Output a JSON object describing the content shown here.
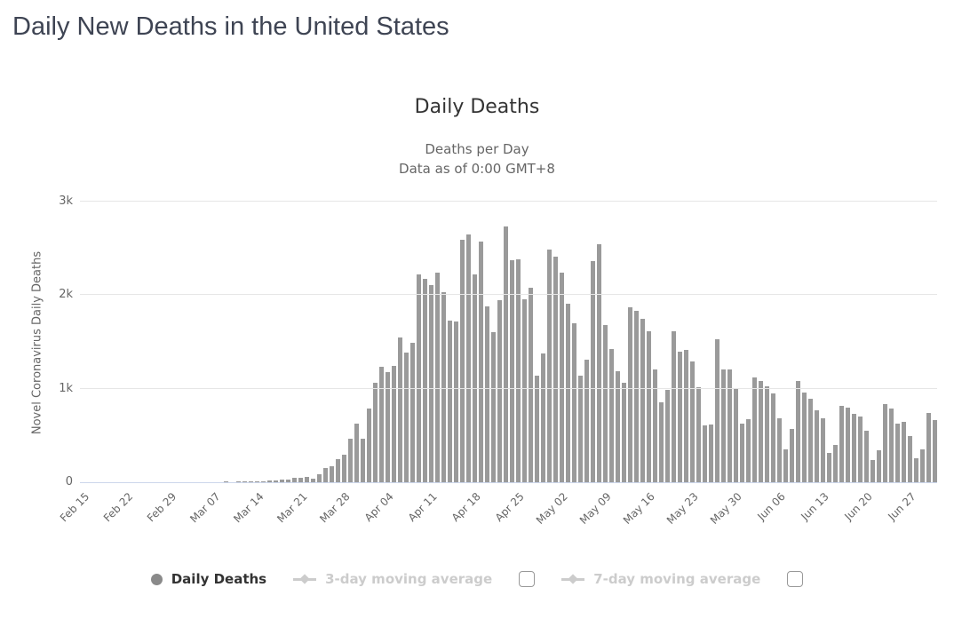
{
  "page": {
    "title": "Daily New Deaths in the United States"
  },
  "chart": {
    "title": "Daily Deaths",
    "subtitle_line1": "Deaths per Day",
    "subtitle_line2": "Data as of 0:00 GMT+8",
    "y_axis_title": "Novel Coronavirus Daily Deaths",
    "y_ticks": [
      "0",
      "1k",
      "2k",
      "3k"
    ],
    "legend": {
      "series1": "Daily Deaths",
      "series2": "3-day moving average",
      "series3": "7-day moving average"
    },
    "colors": {
      "bar": "#9a9a9a",
      "page_title": "#3e4453",
      "chart_title": "#333333",
      "subtitle": "#666666",
      "axis_text": "#666666",
      "gridline": "#e6e6e6",
      "axis_line": "#ccd6eb",
      "legend_active": "#333333",
      "legend_disabled": "#cccccc"
    }
  },
  "chart_data": {
    "type": "bar",
    "title": "Daily Deaths",
    "subtitle": "Deaths per Day — Data as of 0:00 GMT+8",
    "ylabel": "Novel Coronavirus Daily Deaths",
    "ylim": [
      0,
      3000
    ],
    "y_tick_values": [
      0,
      1000,
      2000,
      3000
    ],
    "y_tick_labels": [
      "0",
      "1k",
      "2k",
      "3k"
    ],
    "grid": "horizontal",
    "legend_position": "bottom",
    "series_name": "Daily Deaths",
    "bar_color": "#9a9a9a",
    "start_date": "Feb 15",
    "end_date": "Jul 01",
    "x_tick_labels": [
      "Feb 15",
      "Feb 22",
      "Feb 29",
      "Mar 07",
      "Mar 14",
      "Mar 21",
      "Mar 28",
      "Apr 04",
      "Apr 11",
      "Apr 18",
      "Apr 25",
      "May 02",
      "May 09",
      "May 16",
      "May 23",
      "May 30",
      "Jun 06",
      "Jun 13",
      "Jun 20",
      "Jun 27"
    ],
    "x_tick_day_indices": [
      0,
      7,
      14,
      21,
      28,
      35,
      42,
      49,
      56,
      63,
      70,
      77,
      84,
      91,
      98,
      105,
      112,
      119,
      126,
      133
    ],
    "values": [
      0,
      0,
      0,
      0,
      0,
      0,
      0,
      0,
      0,
      0,
      0,
      0,
      0,
      0,
      1,
      1,
      3,
      2,
      3,
      2,
      3,
      4,
      4,
      6,
      4,
      8,
      6,
      10,
      12,
      10,
      18,
      22,
      28,
      25,
      45,
      50,
      55,
      40,
      85,
      155,
      175,
      250,
      290,
      470,
      630,
      470,
      790,
      1060,
      1230,
      1175,
      1245,
      1545,
      1390,
      1490,
      2220,
      2170,
      2110,
      2245,
      2030,
      1730,
      1720,
      2590,
      2650,
      2220,
      2570,
      1880,
      1600,
      1950,
      2730,
      2370,
      2380,
      1960,
      2080,
      1135,
      1380,
      2490,
      2410,
      2240,
      1910,
      1700,
      1140,
      1310,
      2360,
      2540,
      1680,
      1420,
      1190,
      1060,
      1870,
      1830,
      1750,
      1610,
      1210,
      850,
      990,
      1610,
      1400,
      1410,
      1290,
      1020,
      610,
      620,
      1530,
      1210,
      1210,
      1010,
      630,
      670,
      1120,
      1080,
      1030,
      950,
      680,
      350,
      570,
      1080,
      960,
      890,
      770,
      680,
      310,
      400,
      820,
      800,
      730,
      700,
      550,
      240,
      340,
      840,
      790,
      630,
      650,
      490,
      260,
      350,
      740,
      660
    ],
    "disabled_series": [
      "3-day moving average",
      "7-day moving average"
    ]
  }
}
